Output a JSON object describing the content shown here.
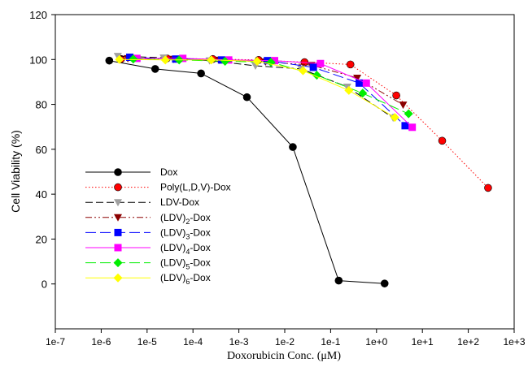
{
  "chart_data": {
    "type": "line",
    "title": "",
    "xlabel": "Doxorubicin Conc. (μM)",
    "ylabel": "Cell Viability (%)",
    "xscale": "log",
    "xlim": [
      1e-07,
      1000
    ],
    "ylim": [
      -20,
      120
    ],
    "xticks": [
      "1e-7",
      "1e-6",
      "1e-5",
      "1e-4",
      "1e-3",
      "1e-2",
      "1e-1",
      "1e+0",
      "1e+1",
      "1e+2",
      "1e+3"
    ],
    "xtick_values": [
      1e-07,
      1e-06,
      1e-05,
      0.0001,
      0.001,
      0.01,
      0.1,
      1,
      10,
      100,
      1000
    ],
    "yticks": [
      0,
      20,
      40,
      60,
      80,
      100,
      120
    ],
    "grid": false,
    "legend_position": "lower-left",
    "series": [
      {
        "name": "Dox",
        "color": "#000000",
        "line": "solid",
        "marker": "circle",
        "x": [
          1.5e-06,
          1.5e-05,
          0.00015,
          0.0015,
          0.015,
          0.15,
          1.5
        ],
        "y": [
          99.5,
          95.8,
          93.8,
          83.2,
          61.0,
          1.5,
          0.2
        ]
      },
      {
        "name": "Poly(L,D,V)-Dox",
        "color": "#ff0000",
        "line": "dotted",
        "marker": "circle",
        "x": [
          2.7e-06,
          2.7e-05,
          0.00027,
          0.0027,
          0.027,
          0.27,
          2.7,
          27,
          270
        ],
        "y": [
          100.2,
          100.5,
          100.2,
          99.8,
          98.8,
          97.8,
          84.0,
          63.8,
          42.8
        ]
      },
      {
        "name": "LDV-Dox",
        "color": "#000000",
        "line": "dashed",
        "marker": "triangle-down",
        "x": [
          2.3e-06,
          2.3e-05,
          0.00023,
          0.0023,
          0.023,
          0.23,
          2.3
        ],
        "y": [
          101.5,
          100.8,
          99.5,
          97.2,
          95.8,
          87.8,
          74.0
        ]
      },
      {
        "name": "(LDV)2-Dox",
        "color": "#8b0000",
        "line": "dash-dot-dot",
        "marker": "triangle-down",
        "x": [
          3.8e-06,
          3.8e-05,
          0.00038,
          0.0038,
          0.038,
          0.38,
          3.8
        ],
        "y": [
          100.5,
          100.2,
          99.8,
          99.0,
          97.5,
          91.8,
          79.8
        ]
      },
      {
        "name": "(LDV)3-Dox",
        "color": "#0000ff",
        "line": "long-dash",
        "marker": "square",
        "x": [
          4.2e-06,
          4.2e-05,
          0.00042,
          0.0042,
          0.042,
          0.42,
          4.2
        ],
        "y": [
          101.0,
          100.2,
          99.8,
          99.5,
          96.5,
          89.5,
          70.5
        ]
      },
      {
        "name": "(LDV)4-Dox",
        "color": "#ff00ff",
        "line": "solid",
        "marker": "square",
        "x": [
          6e-06,
          6e-05,
          0.0006,
          0.006,
          0.06,
          0.6,
          6
        ],
        "y": [
          100.5,
          100.5,
          99.8,
          99.5,
          98.2,
          89.5,
          69.8
        ]
      },
      {
        "name": "(LDV)5-Dox",
        "color": "#00ee00",
        "line": "long-dash",
        "marker": "diamond",
        "x": [
          5e-06,
          5e-05,
          0.0005,
          0.005,
          0.05,
          0.5,
          5
        ],
        "y": [
          100.2,
          99.8,
          99.2,
          98.8,
          93.0,
          85.0,
          75.8
        ]
      },
      {
        "name": "(LDV)6-Dox",
        "color": "#ffff00",
        "line": "solid",
        "marker": "diamond",
        "x": [
          2.5e-06,
          2.5e-05,
          0.00025,
          0.0025,
          0.025,
          0.25,
          2.5
        ],
        "y": [
          100.0,
          99.8,
          99.8,
          99.2,
          95.0,
          86.2,
          74.2
        ]
      }
    ]
  }
}
